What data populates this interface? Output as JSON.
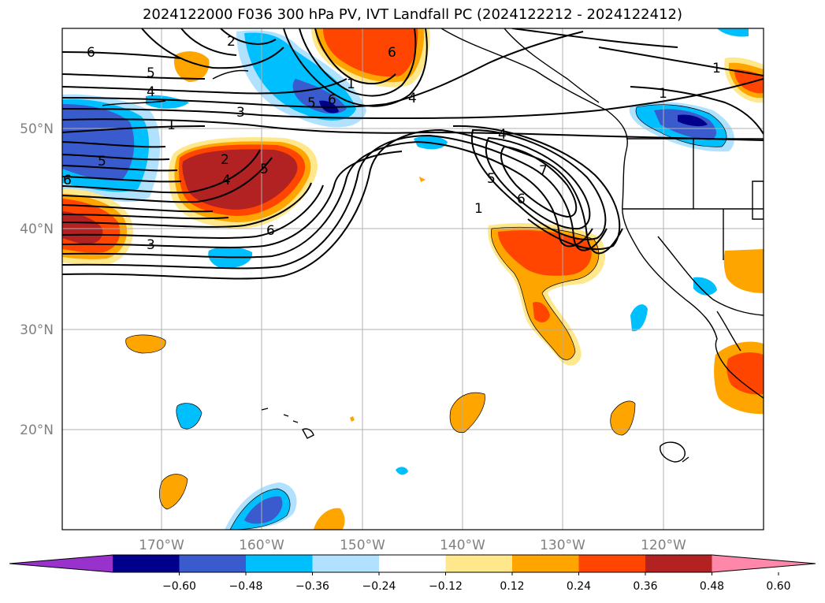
{
  "title": "2024122000 F036 300 hPa PV, IVT Landfall PC (2024122212 - 2024122412)",
  "lat_labels": [
    "50°N",
    "40°N",
    "30°N",
    "20°N"
  ],
  "lon_labels": [
    "170°W",
    "160°W",
    "150°W",
    "140°W",
    "130°W",
    "120°W"
  ],
  "colorbar": {
    "ticks": [
      "−0.60",
      "−0.48",
      "−0.36",
      "−0.24",
      "−0.12",
      "0.12",
      "0.24",
      "0.36",
      "0.48",
      "0.60"
    ],
    "colors": [
      "#9932cc",
      "#00008b",
      "#3a5bcd",
      "#00bfff",
      "#b0e2ff",
      "#ffffff",
      "#ffe88c",
      "#ffa500",
      "#ff4500",
      "#b22222",
      "#ff88aa"
    ]
  },
  "contour_labels": [
    "6",
    "5",
    "4",
    "3",
    "1",
    "2",
    "5",
    "4",
    "2",
    "5",
    "6",
    "3",
    "6",
    "5",
    "1",
    "4",
    "6",
    "4",
    "5",
    "6",
    "1",
    "7",
    "1",
    "1",
    "6"
  ]
}
